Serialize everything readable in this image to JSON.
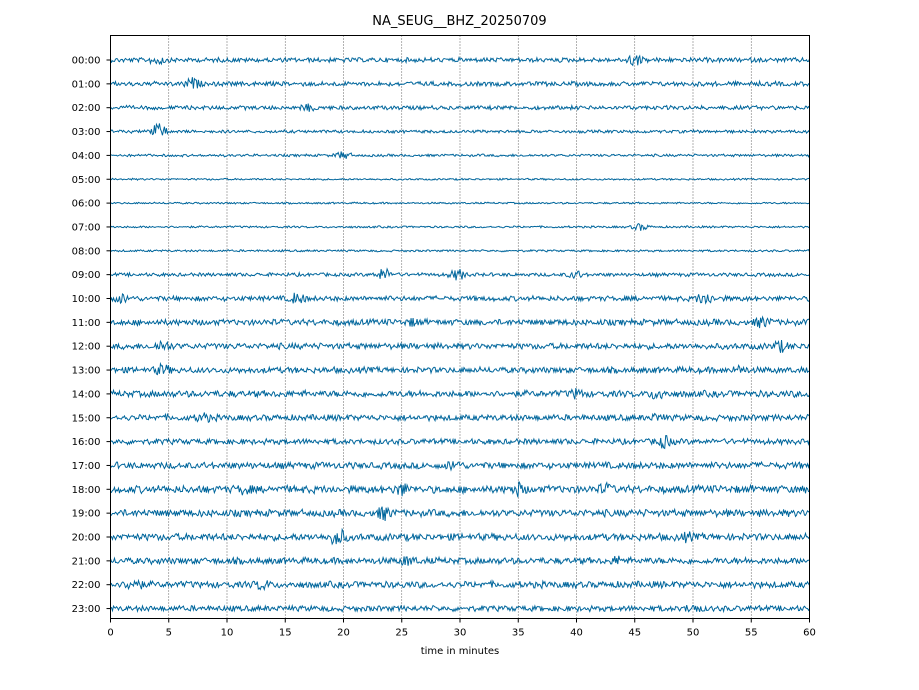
{
  "chart_data": {
    "type": "line",
    "title": "NA_SEUG__BHZ_20250709",
    "xlabel": "time in minutes",
    "ylabel": "",
    "xlim": [
      0,
      60
    ],
    "xticks": [
      0,
      5,
      10,
      15,
      20,
      25,
      30,
      35,
      40,
      45,
      50,
      55,
      60
    ],
    "xtick_labels": [
      "0",
      "5",
      "10",
      "15",
      "20",
      "25",
      "30",
      "35",
      "40",
      "45",
      "50",
      "55",
      "60"
    ],
    "grid": "vertical dotted at each x tick",
    "trace_color": "#00669c",
    "rows": [
      {
        "label": "00:00",
        "amp": 0.9
      },
      {
        "label": "01:00",
        "amp": 0.9
      },
      {
        "label": "02:00",
        "amp": 0.8
      },
      {
        "label": "03:00",
        "amp": 0.6
      },
      {
        "label": "04:00",
        "amp": 0.5
      },
      {
        "label": "05:00",
        "amp": 0.35
      },
      {
        "label": "06:00",
        "amp": 0.35
      },
      {
        "label": "07:00",
        "amp": 0.4
      },
      {
        "label": "08:00",
        "amp": 0.4
      },
      {
        "label": "09:00",
        "amp": 0.7
      },
      {
        "label": "10:00",
        "amp": 1.0
      },
      {
        "label": "11:00",
        "amp": 1.2
      },
      {
        "label": "12:00",
        "amp": 1.2
      },
      {
        "label": "13:00",
        "amp": 1.2
      },
      {
        "label": "14:00",
        "amp": 1.3
      },
      {
        "label": "15:00",
        "amp": 1.2
      },
      {
        "label": "16:00",
        "amp": 1.1
      },
      {
        "label": "17:00",
        "amp": 1.3
      },
      {
        "label": "18:00",
        "amp": 1.5
      },
      {
        "label": "19:00",
        "amp": 1.4
      },
      {
        "label": "20:00",
        "amp": 1.4
      },
      {
        "label": "21:00",
        "amp": 1.3
      },
      {
        "label": "22:00",
        "amp": 1.3
      },
      {
        "label": "23:00",
        "amp": 1.1
      }
    ],
    "events": [
      {
        "row": 0,
        "minute": 4,
        "amp": 2.2
      },
      {
        "row": 0,
        "minute": 45,
        "amp": 2.6
      },
      {
        "row": 1,
        "minute": 7,
        "amp": 2.6
      },
      {
        "row": 2,
        "minute": 17,
        "amp": 1.6
      },
      {
        "row": 3,
        "minute": 4,
        "amp": 4.0
      },
      {
        "row": 4,
        "minute": 20,
        "amp": 1.8
      },
      {
        "row": 7,
        "minute": 45.5,
        "amp": 1.6
      },
      {
        "row": 9,
        "minute": 23.5,
        "amp": 2.8
      },
      {
        "row": 9,
        "minute": 29.8,
        "amp": 2.6
      },
      {
        "row": 9,
        "minute": 40,
        "amp": 1.8
      },
      {
        "row": 10,
        "minute": 1,
        "amp": 2.0
      },
      {
        "row": 10,
        "minute": 16,
        "amp": 2.6
      },
      {
        "row": 10,
        "minute": 51,
        "amp": 3.0
      },
      {
        "row": 11,
        "minute": 26,
        "amp": 1.8
      },
      {
        "row": 11,
        "minute": 56,
        "amp": 2.6
      },
      {
        "row": 12,
        "minute": 4.5,
        "amp": 2.6
      },
      {
        "row": 12,
        "minute": 57.5,
        "amp": 2.6
      },
      {
        "row": 13,
        "minute": 4.5,
        "amp": 2.6
      },
      {
        "row": 13,
        "minute": 54,
        "amp": 1.8
      },
      {
        "row": 14,
        "minute": 40,
        "amp": 2.2
      },
      {
        "row": 14,
        "minute": 47,
        "amp": 2.8
      },
      {
        "row": 15,
        "minute": 8,
        "amp": 2.2
      },
      {
        "row": 15,
        "minute": 47,
        "amp": 1.8
      },
      {
        "row": 16,
        "minute": 47.5,
        "amp": 2.8
      },
      {
        "row": 17,
        "minute": 29.5,
        "amp": 2.4
      },
      {
        "row": 18,
        "minute": 11.5,
        "amp": 2.2
      },
      {
        "row": 18,
        "minute": 25,
        "amp": 2.8
      },
      {
        "row": 18,
        "minute": 35,
        "amp": 3.0
      },
      {
        "row": 18,
        "minute": 42.5,
        "amp": 2.6
      },
      {
        "row": 19,
        "minute": 23.5,
        "amp": 3.0
      },
      {
        "row": 20,
        "minute": 19.5,
        "amp": 4.0
      },
      {
        "row": 20,
        "minute": 49.5,
        "amp": 2.2
      },
      {
        "row": 21,
        "minute": 25.5,
        "amp": 2.2
      },
      {
        "row": 21,
        "minute": 43.5,
        "amp": 2.0
      },
      {
        "row": 22,
        "minute": 2,
        "amp": 3.0
      },
      {
        "row": 22,
        "minute": 13,
        "amp": 2.2
      },
      {
        "row": 23,
        "minute": 50,
        "amp": 2.2
      }
    ]
  }
}
